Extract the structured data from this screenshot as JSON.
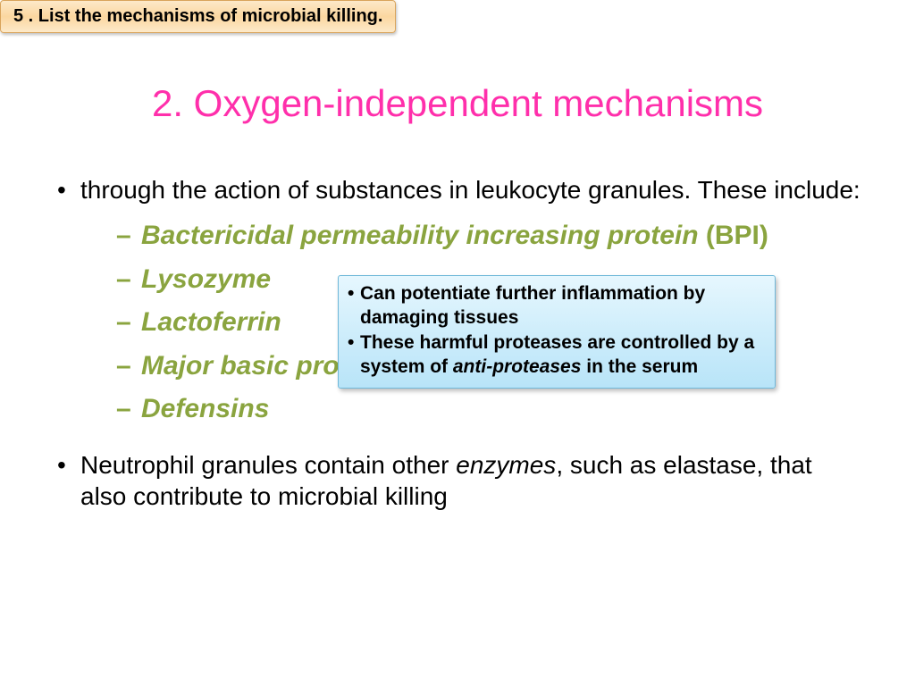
{
  "header": {
    "text": "5 . List the mechanisms of microbial killing.",
    "bg_gradient": [
      "#fde9c9",
      "#fbd7a0",
      "#fde9c9"
    ],
    "border_color": "#d9a45b",
    "fontsize": 20
  },
  "title": {
    "text": "2. Oxygen-independent mechanisms",
    "color": "#ff2fab",
    "fontsize": 42
  },
  "intro_bullet": {
    "text": "through the action of substances in leukocyte granules. These include:",
    "fontsize": 28,
    "color": "#000000"
  },
  "sub_items": {
    "color": "#8aa43f",
    "fontsize": 30,
    "items": [
      {
        "italic": " Bactericidal permeability increasing protein",
        "plain": " (BPI)"
      },
      {
        "italic": "Lysozyme",
        "plain": ""
      },
      {
        "italic": "Lactoferrin",
        "plain": ""
      },
      {
        "italic": "Major basic protein",
        "plain": ""
      },
      {
        "italic": "Defensins",
        "plain": ""
      }
    ]
  },
  "callout": {
    "bg_gradient": [
      "#e6f7fe",
      "#b8e4f8"
    ],
    "border_color": "#6fb8d9",
    "fontsize": 21,
    "lines": [
      {
        "pre": " Can potentiate further inflammation by damaging tissues",
        "em": "",
        "post": ""
      },
      {
        "pre": "These harmful proteases are controlled by a system of ",
        "em": "anti-proteases",
        "post": " in the serum"
      }
    ]
  },
  "closing_bullet": {
    "pre": "Neutrophil granules contain other ",
    "em": "enzymes",
    "post": ", such as elastase, that also contribute to microbial killing",
    "fontsize": 28,
    "color": "#000000"
  }
}
